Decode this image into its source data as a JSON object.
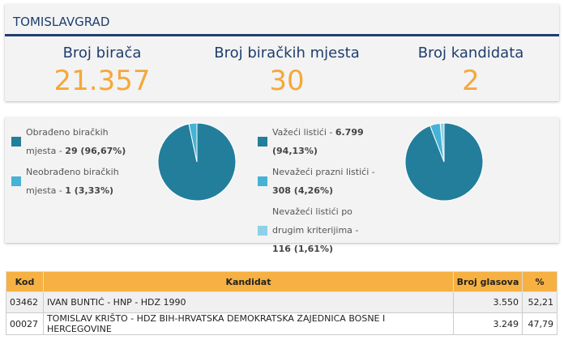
{
  "header": {
    "title": "TOMISLAVGRAD"
  },
  "stats": [
    {
      "label": "Broj birača",
      "value": "21.357"
    },
    {
      "label": "Broj biračkih mjesta",
      "value": "30"
    },
    {
      "label": "Broj kandidata",
      "value": "2"
    }
  ],
  "chart_data": [
    {
      "type": "pie",
      "categories": [
        "Obrađeno biračkih mjesta -",
        "Neobrađeno biračkih mjesta -"
      ],
      "values": [
        96.67,
        3.33
      ],
      "value_labels": [
        "29 (96,67%)",
        "1 (3,33%)"
      ],
      "colors": [
        "#237e9b",
        "#46b2d6"
      ]
    },
    {
      "type": "pie",
      "categories": [
        "Važeći listići -",
        "Nevažeći prazni listići -",
        "Nevažeći listići po drugim kriterijima -"
      ],
      "values": [
        94.13,
        4.26,
        1.61
      ],
      "value_labels": [
        "6.799 (94,13%)",
        "308 (4,26%)",
        "116 (1,61%)"
      ],
      "colors": [
        "#237e9b",
        "#46b2d6",
        "#8ed0e8"
      ]
    }
  ],
  "table": {
    "headers": [
      "Kod",
      "Kandidat",
      "Broj glasova",
      "%"
    ],
    "rows": [
      [
        "03462",
        "IVAN BUNTIĆ - HNP - HDZ 1990",
        "3.550",
        "52,21"
      ],
      [
        "00027",
        "TOMISLAV KRIŠTO - HDZ BIH-HRVATSKA DEMOKRATSKA ZAJEDNICA BOSNE I HERCEGOVINE",
        "3.249",
        "47,79"
      ]
    ]
  }
}
